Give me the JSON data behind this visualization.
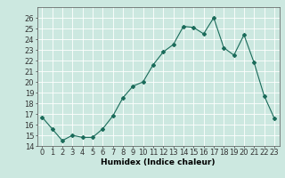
{
  "x": [
    0,
    1,
    2,
    3,
    4,
    5,
    6,
    7,
    8,
    9,
    10,
    11,
    12,
    13,
    14,
    15,
    16,
    17,
    18,
    19,
    20,
    21,
    22,
    23
  ],
  "y": [
    16.7,
    15.6,
    14.5,
    15.0,
    14.8,
    14.8,
    15.6,
    16.8,
    18.5,
    19.6,
    20.0,
    21.6,
    22.8,
    23.5,
    25.2,
    25.1,
    24.5,
    26.0,
    23.2,
    22.5,
    24.4,
    21.8,
    18.7,
    16.6
  ],
  "xlabel": "Humidex (Indice chaleur)",
  "xlim": [
    -0.5,
    23.5
  ],
  "ylim": [
    14,
    27
  ],
  "yticks": [
    14,
    15,
    16,
    17,
    18,
    19,
    20,
    21,
    22,
    23,
    24,
    25,
    26
  ],
  "xticks": [
    0,
    1,
    2,
    3,
    4,
    5,
    6,
    7,
    8,
    9,
    10,
    11,
    12,
    13,
    14,
    15,
    16,
    17,
    18,
    19,
    20,
    21,
    22,
    23
  ],
  "line_color": "#1a6b5a",
  "marker": "D",
  "marker_size": 2.0,
  "bg_color": "#cce8e0",
  "grid_color": "#ffffff",
  "axis_fontsize": 6.5,
  "tick_fontsize": 6.0
}
